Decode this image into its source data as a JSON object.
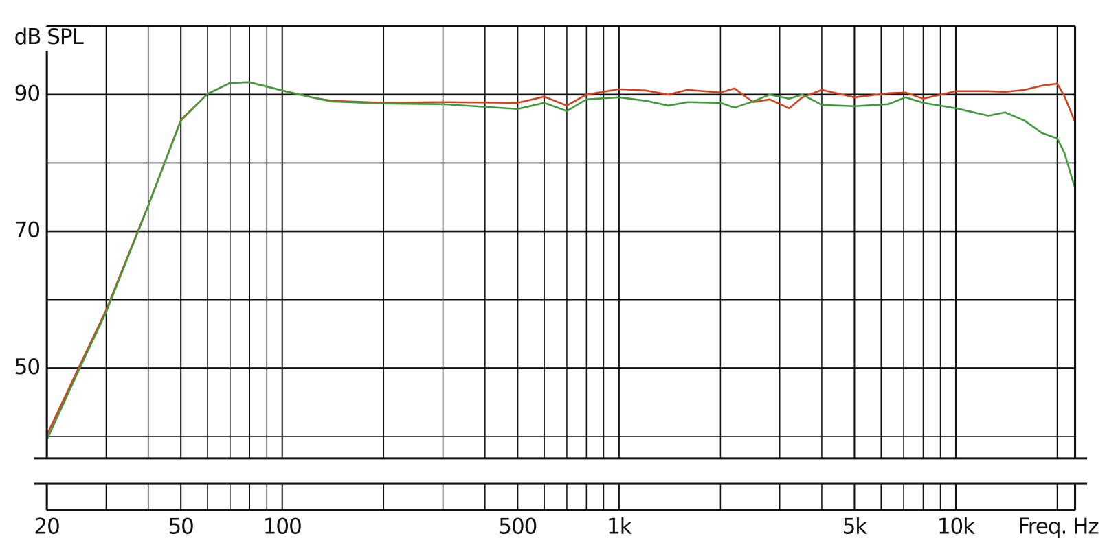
{
  "chart_data": {
    "type": "line",
    "xlabel": "Freq. Hz",
    "ylabel": "dB SPL",
    "xscale": "log",
    "xlim": [
      20,
      22600
    ],
    "ylim": [
      36.8,
      100
    ],
    "xticks": [
      20,
      50,
      100,
      500,
      {
        "value": 1000,
        "label": "1k"
      },
      {
        "value": 5000,
        "label": "5k"
      },
      {
        "value": 10000,
        "label": "10k"
      }
    ],
    "xgrid": [
      30,
      40,
      60,
      70,
      80,
      90,
      200,
      300,
      400,
      600,
      700,
      800,
      900,
      2000,
      3000,
      4000,
      6000,
      7000,
      8000,
      9000,
      20000
    ],
    "yticks": [
      50,
      70,
      90
    ],
    "ygrid": [
      40,
      60,
      80,
      100
    ],
    "x": [
      20,
      25,
      30,
      40,
      50,
      60,
      70,
      80,
      100,
      125,
      140,
      200,
      300,
      500,
      600,
      700,
      800,
      1000,
      1200,
      1400,
      1600,
      2000,
      2200,
      2500,
      2800,
      3200,
      3500,
      4000,
      5000,
      6300,
      7100,
      8000,
      10000,
      12500,
      14000,
      16000,
      18000,
      20000,
      21000,
      22500
    ],
    "series": [
      {
        "name": "red",
        "color": "#d8401c",
        "values": [
          40.2,
          50.3,
          58.5,
          73.8,
          86.3,
          90.1,
          91.7,
          91.8,
          90.6,
          89.5,
          89.1,
          88.8,
          88.9,
          88.8,
          89.7,
          88.4,
          90,
          90.8,
          90.6,
          90,
          90.7,
          90.3,
          90.9,
          88.9,
          89.3,
          88,
          89.6,
          90.7,
          89.6,
          90.2,
          90.3,
          89.4,
          90.5,
          90.5,
          90.4,
          90.7,
          91.3,
          91.6,
          89.8,
          86.2
        ]
      },
      {
        "name": "green",
        "color": "#3e9a3a",
        "values": [
          39.5,
          49.9,
          58.2,
          73.7,
          86.2,
          90.1,
          91.7,
          91.8,
          90.6,
          89.5,
          89,
          88.7,
          88.6,
          87.9,
          88.8,
          87.6,
          89.3,
          89.6,
          89.1,
          88.4,
          88.9,
          88.8,
          88.1,
          89,
          90,
          89.4,
          90,
          88.5,
          88.3,
          88.6,
          89.6,
          88.8,
          88,
          86.9,
          87.4,
          86.2,
          84.4,
          83.6,
          81.5,
          76.6
        ]
      }
    ]
  }
}
